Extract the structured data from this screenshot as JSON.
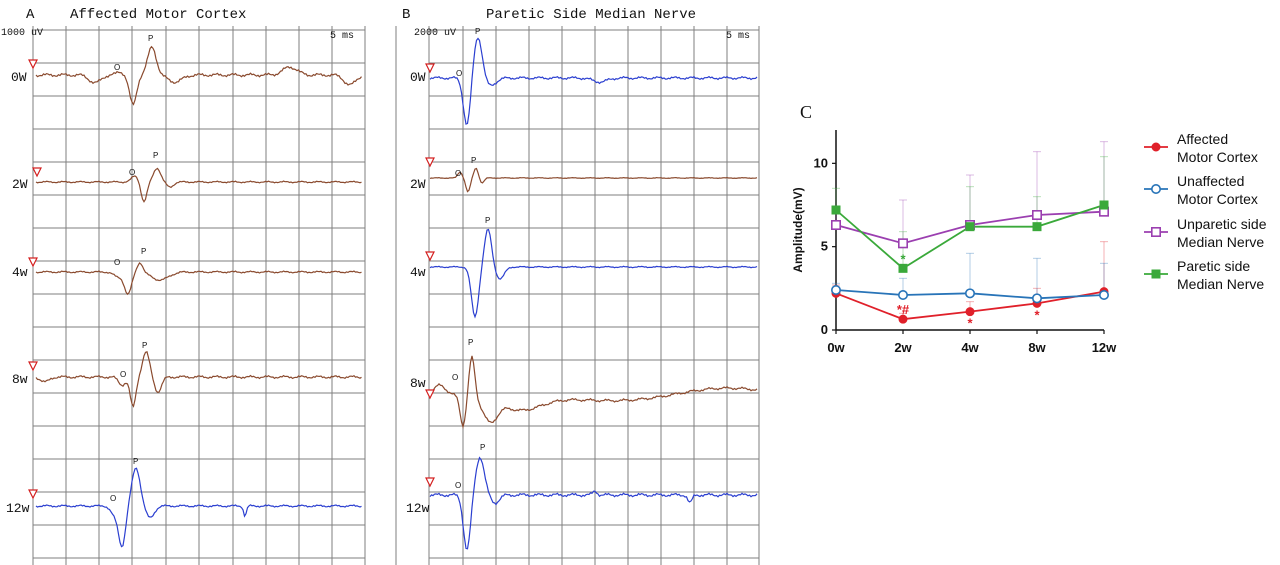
{
  "panel_a": {
    "letter": "A",
    "title": "Affected Motor Cortex",
    "scale": "1000 uV",
    "time": "5 ms",
    "trace_color": "#8a4a2e",
    "last_trace_color": "#2b3fd0",
    "traces": [
      {
        "label": "0W",
        "o": "O",
        "p": "P"
      },
      {
        "label": "2W",
        "o": "O",
        "p": "P"
      },
      {
        "label": "4w",
        "o": "O",
        "p": "P"
      },
      {
        "label": "8w",
        "o": "O",
        "p": "P"
      },
      {
        "label": "12w",
        "o": "O",
        "p": "P"
      }
    ]
  },
  "panel_b": {
    "letter": "B",
    "title": "Paretic Side Median Nerve",
    "scale": "2000 uV",
    "time": "5 ms",
    "trace_color": "#2b3fd0",
    "alt_trace_color": "#8a4a2e",
    "traces": [
      {
        "label": "0W",
        "o": "O",
        "p": "P"
      },
      {
        "label": "2W",
        "o": "O",
        "p": "P"
      },
      {
        "label": "4w",
        "o": "",
        "p": "P"
      },
      {
        "label": "8w",
        "o": "O",
        "p": "P"
      },
      {
        "label": "12w",
        "o": "O",
        "p": "P"
      }
    ]
  },
  "chart_data": {
    "type": "line",
    "panel_letter": "C",
    "ylabel": "Amplitude(mV)",
    "xlabel": "",
    "categories": [
      "0w",
      "2w",
      "4w",
      "8w",
      "12w"
    ],
    "ylim": [
      0,
      12
    ],
    "yticks": [
      0,
      5,
      10
    ],
    "legend_position": "right",
    "series": [
      {
        "name_lines": [
          "Affected",
          "Motor Cortex"
        ],
        "color": "#e0202a",
        "marker": "filled-circle",
        "values": [
          2.2,
          0.65,
          1.1,
          1.6,
          2.3
        ],
        "errors": [
          0.5,
          0.35,
          0.6,
          0.9,
          3.0
        ]
      },
      {
        "name_lines": [
          "Unaffected",
          "Motor Cortex"
        ],
        "color": "#2874b8",
        "marker": "open-circle",
        "values": [
          2.4,
          2.1,
          2.2,
          1.9,
          2.1
        ],
        "errors": [
          0.4,
          1.0,
          2.4,
          2.4,
          1.9
        ]
      },
      {
        "name_lines": [
          "Unparetic side",
          "Median Nerve"
        ],
        "color": "#9b3fb0",
        "marker": "open-square",
        "values": [
          6.3,
          5.2,
          6.3,
          6.9,
          7.1
        ],
        "errors": [
          1.0,
          2.6,
          3.0,
          3.8,
          4.2
        ]
      },
      {
        "name_lines": [
          "Paretic side",
          "Median Nerve"
        ],
        "color": "#3aa93a",
        "marker": "filled-square",
        "values": [
          7.2,
          3.7,
          6.2,
          6.2,
          7.5
        ],
        "errors": [
          1.3,
          2.2,
          2.4,
          1.8,
          2.9
        ]
      }
    ],
    "annotations": [
      {
        "category": "2w",
        "value": 0.65,
        "text": "*#",
        "color": "#e0202a",
        "placement": "above"
      },
      {
        "category": "4w",
        "value": 1.1,
        "text": "*",
        "color": "#e0202a",
        "placement": "below"
      },
      {
        "category": "8w",
        "value": 1.6,
        "text": "*",
        "color": "#e0202a",
        "placement": "below"
      },
      {
        "category": "2w",
        "value": 3.7,
        "text": "*",
        "color": "#3aa93a",
        "placement": "above"
      }
    ]
  }
}
